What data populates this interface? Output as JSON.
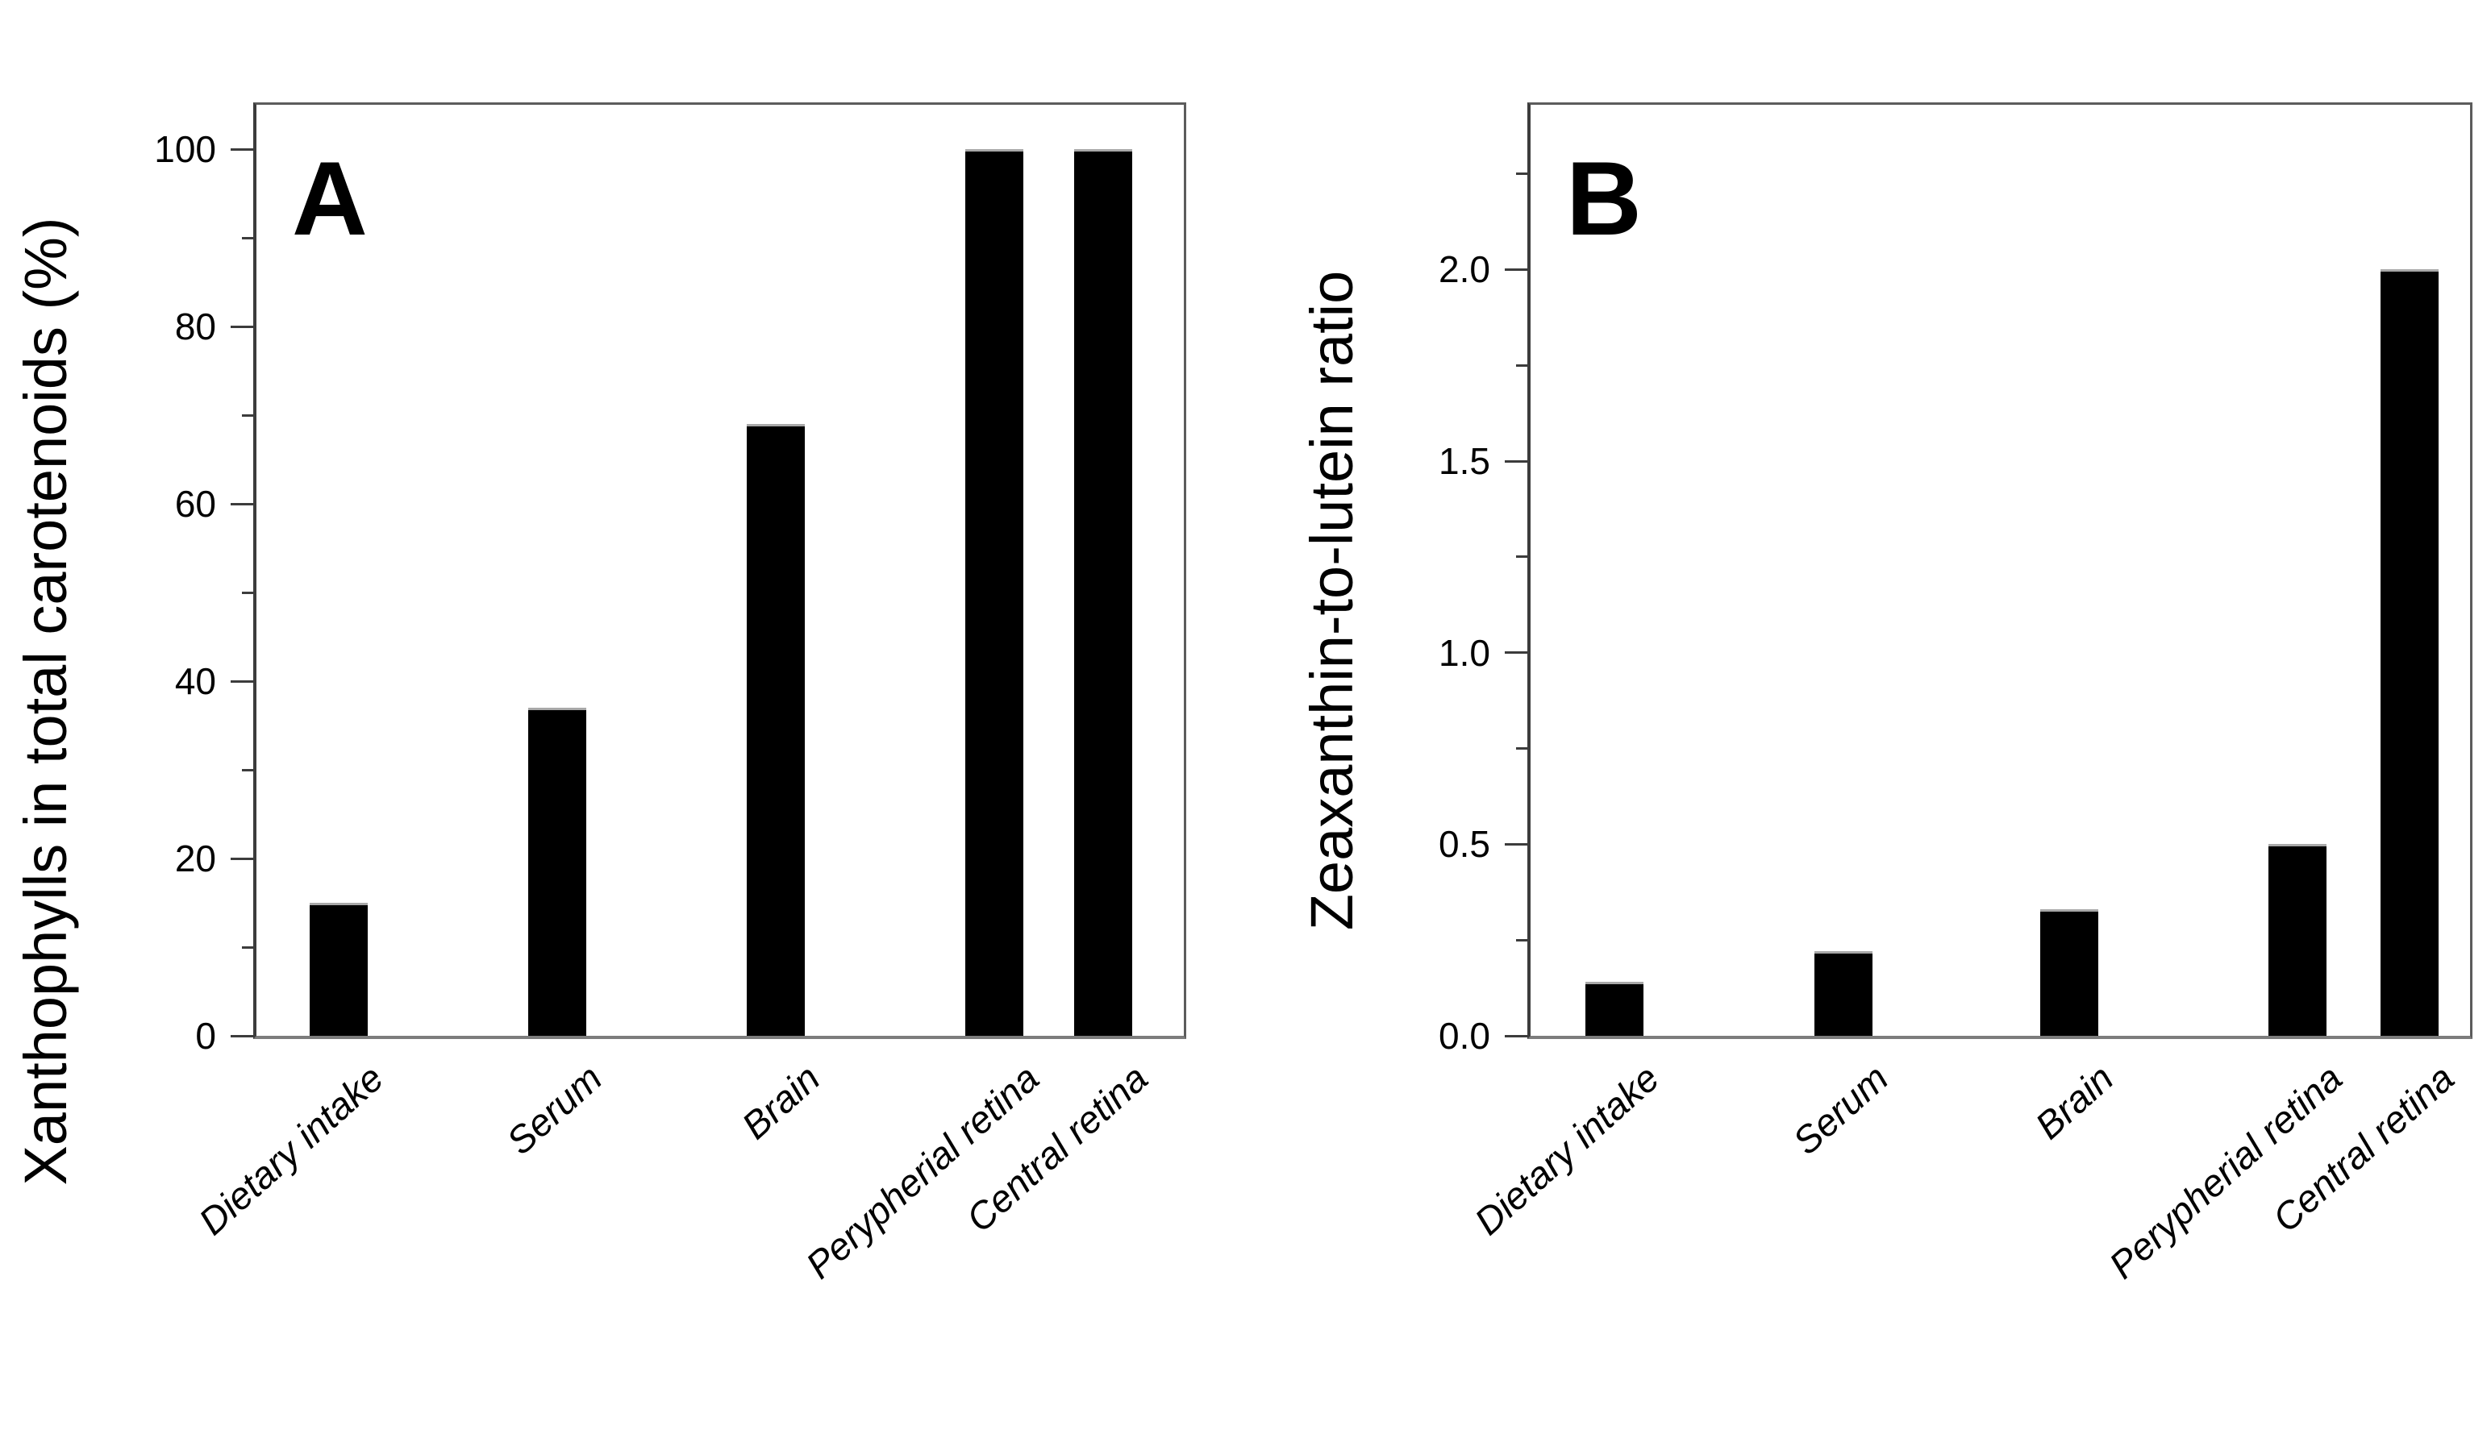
{
  "figure": {
    "background": "#ffffff",
    "bar_color": "#000000",
    "axis_color": "#3c3c3c",
    "baseline_color": "#7c7c7c"
  },
  "chart_data": [
    {
      "type": "bar",
      "panel_letter": "A",
      "title": "",
      "xlabel": "",
      "ylabel": "Xanthophylls in total carotenoids (%)",
      "categories": [
        "Dietary intake",
        "Serum",
        "Brain",
        "Perypherial retina",
        "Central retina"
      ],
      "values": [
        15,
        37,
        69,
        100,
        100
      ],
      "ylim": [
        0,
        105
      ],
      "y_major_ticks": [
        0,
        20,
        40,
        60,
        80,
        100
      ],
      "y_major_tick_labels": [
        "0",
        "20",
        "40",
        "60",
        "80",
        "100"
      ],
      "y_minor_ticks": [
        10,
        30,
        50,
        70,
        90
      ],
      "bar_color": "#000000",
      "grid": false,
      "legend": null
    },
    {
      "type": "bar",
      "panel_letter": "B",
      "title": "",
      "xlabel": "",
      "ylabel": "Zeaxanthin-to-lutein ratio",
      "categories": [
        "Dietary intake",
        "Serum",
        "Brain",
        "Perypherial retina",
        "Central retina"
      ],
      "values": [
        0.14,
        0.22,
        0.33,
        0.5,
        2.0
      ],
      "ylim": [
        0,
        2.43
      ],
      "y_major_ticks": [
        0.0,
        0.5,
        1.0,
        1.5,
        2.0
      ],
      "y_major_tick_labels": [
        "0.0",
        "0.5",
        "1.0",
        "1.5",
        "2.0"
      ],
      "y_minor_ticks": [
        0.25,
        0.75,
        1.25,
        1.75,
        2.25
      ],
      "bar_color": "#000000",
      "grid": false,
      "legend": null
    }
  ]
}
